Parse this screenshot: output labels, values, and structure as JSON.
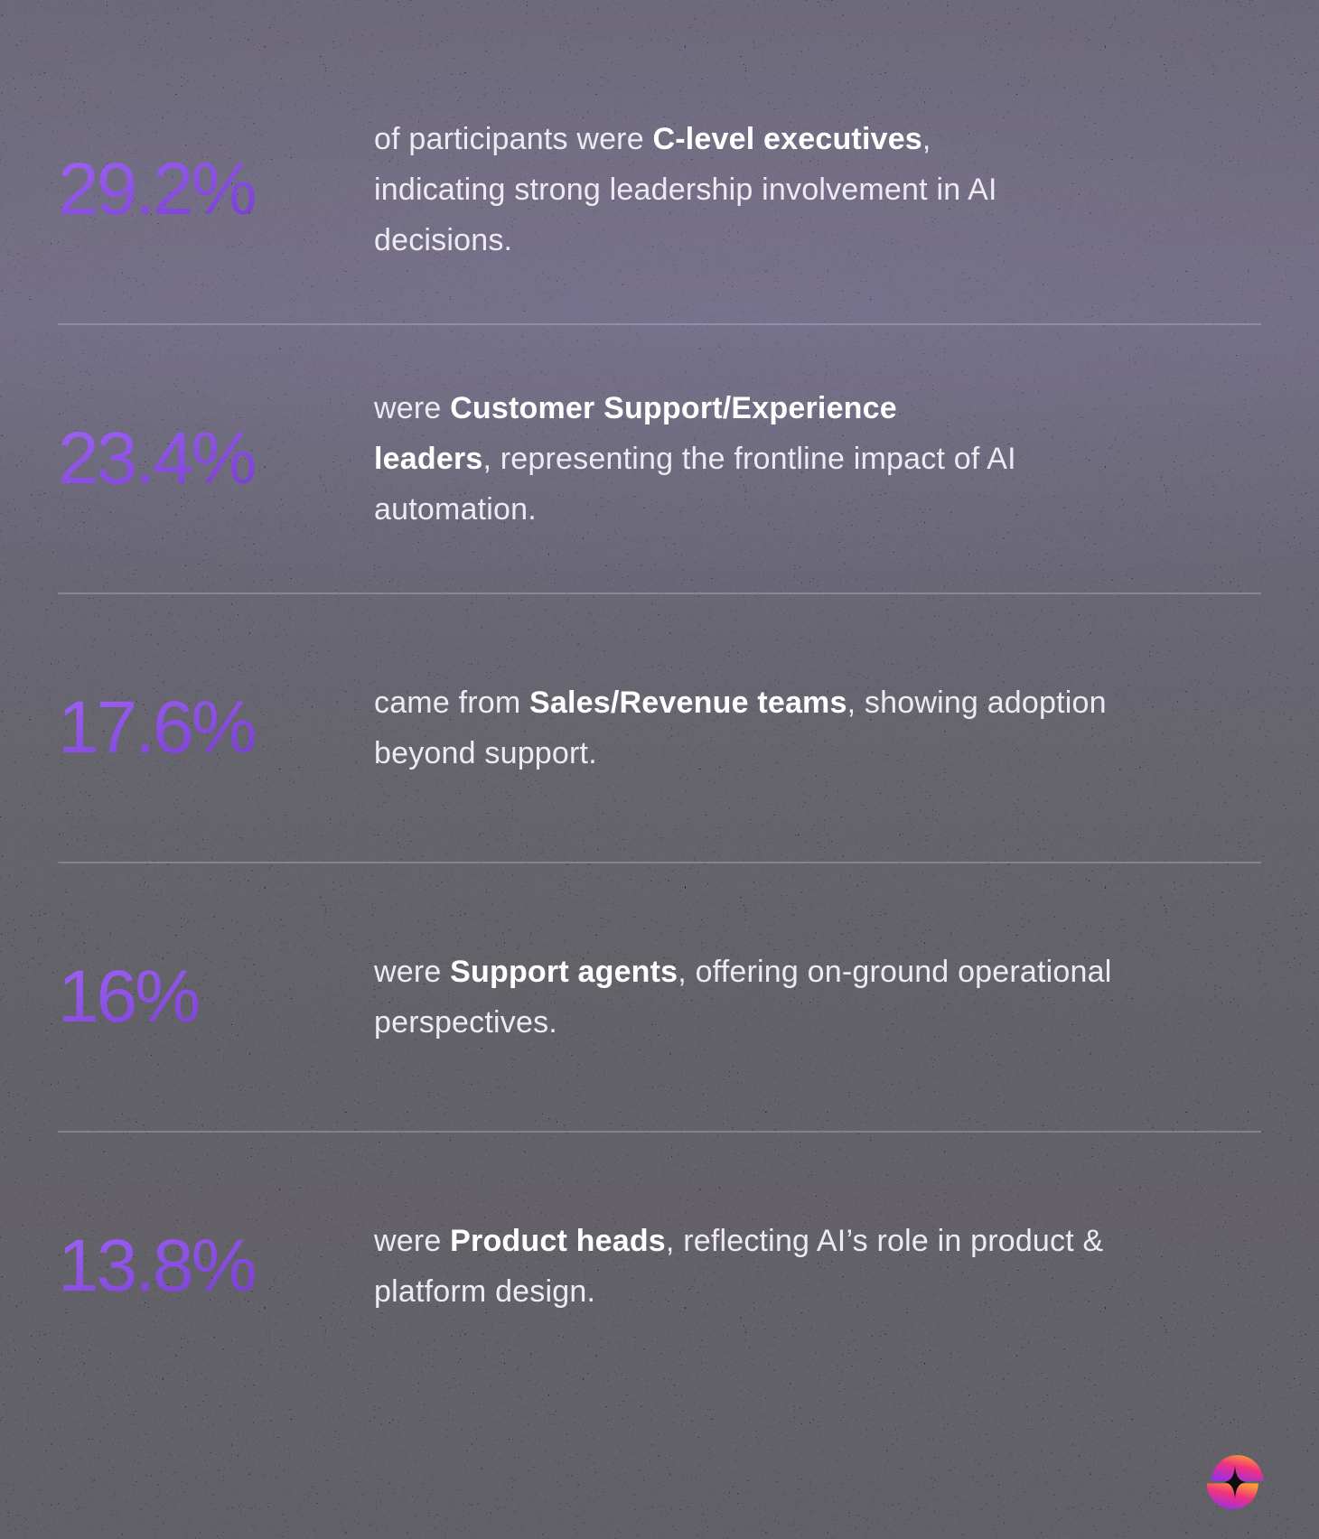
{
  "colors": {
    "accent_purple": "#8a4ee0",
    "accent_purple_light": "#9a5ef0",
    "accent_purple_dark": "#7134c8",
    "body_text": "#edeaf2",
    "highlight_text": "#ffffff",
    "divider": "rgba(225,223,232,0.26)",
    "background_top": "#2a2342",
    "background_bottom": "#0f0d11",
    "logo_gradient": [
      "#fb9d32",
      "#f0327f",
      "#9b2fe8"
    ]
  },
  "sections": [
    {
      "percent": "29.2%",
      "lines": [
        [
          {
            "t": "of participants were "
          },
          {
            "t": "C-level executives",
            "b": true
          },
          {
            "t": ","
          }
        ],
        [
          {
            "t": "indicating strong leadership involvement in AI"
          }
        ],
        [
          {
            "t": "decisions."
          }
        ]
      ]
    },
    {
      "percent": "23.4%",
      "lines": [
        [
          {
            "t": "were "
          },
          {
            "t": "Customer Support/Experience",
            "b": true
          }
        ],
        [
          {
            "t": "leaders",
            "b": true
          },
          {
            "t": ", representing the frontline impact of AI"
          }
        ],
        [
          {
            "t": "automation."
          }
        ]
      ]
    },
    {
      "percent": "17.6%",
      "lines": [
        [
          {
            "t": "came from "
          },
          {
            "t": "Sales/Revenue teams",
            "b": true
          },
          {
            "t": ", showing adoption"
          }
        ],
        [
          {
            "t": "beyond support."
          }
        ]
      ]
    },
    {
      "percent": "16%",
      "lines": [
        [
          {
            "t": "were "
          },
          {
            "t": "Support agents",
            "b": true
          },
          {
            "t": ", offering on-ground operational"
          }
        ],
        [
          {
            "t": "perspectives."
          }
        ]
      ]
    },
    {
      "percent": "13.8%",
      "lines": [
        [
          {
            "t": "were "
          },
          {
            "t": "Product heads",
            "b": true
          },
          {
            "t": ", reflecting AI’s role in product &"
          }
        ],
        [
          {
            "t": "platform design."
          }
        ]
      ]
    }
  ],
  "footer": {
    "logo": "sparkle-orb-logo"
  }
}
